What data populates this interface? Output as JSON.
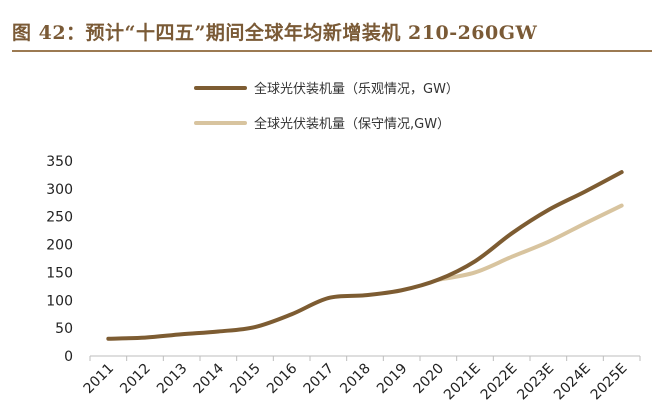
{
  "figure": {
    "title": "图 42：预计“十四五”期间全球年均新增装机 210-260GW"
  },
  "colors": {
    "title": "#7a5a36",
    "optimistic": "#7d5c32",
    "conservative": "#d8c49f",
    "axis": "#bdbdbd"
  },
  "chart_data": {
    "type": "line",
    "title": "",
    "xlabel": "",
    "ylabel": "",
    "ylim": [
      0,
      350
    ],
    "yticks": [
      0,
      50,
      100,
      150,
      200,
      250,
      300,
      350
    ],
    "grid": false,
    "legend_position": "top",
    "categories": [
      "2011",
      "2012",
      "2013",
      "2014",
      "2015",
      "2016",
      "2017",
      "2018",
      "2019",
      "2020",
      "2021E",
      "2022E",
      "2023E",
      "2024E",
      "2025E"
    ],
    "series": [
      {
        "name": "全球光伏装机量（乐观情况，GW）",
        "values": [
          31,
          33,
          39,
          44,
          52,
          75,
          104,
          109,
          118,
          137,
          170,
          220,
          262,
          295,
          330
        ]
      },
      {
        "name": "全球光伏装机量（保守情况,GW）",
        "values": [
          null,
          null,
          null,
          null,
          null,
          null,
          null,
          null,
          null,
          137,
          150,
          178,
          205,
          238,
          270
        ]
      }
    ]
  }
}
